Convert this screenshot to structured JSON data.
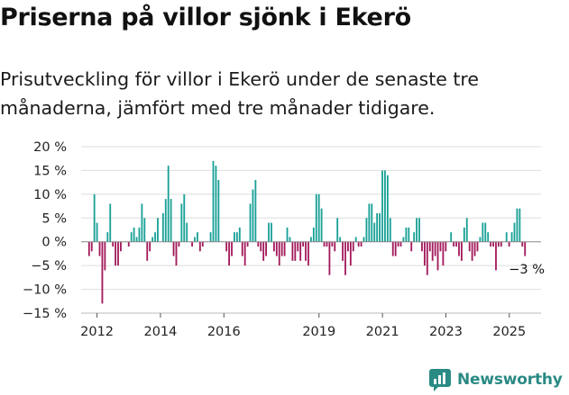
{
  "title": "Priserna på villor sjönk i Ekerö",
  "subtitle": "Prisutveckling för villor i Ekerö under de senaste tre månaderna, jämfört med tre månader tidigare.",
  "brand": {
    "name": "Newsworthy",
    "icon": "newsworthy-logo-icon",
    "color": "#2a8a84"
  },
  "colors": {
    "positive": "#18a097",
    "negative": "#a3195b",
    "grid": "#dddddd",
    "axis": "#888888"
  },
  "chart_data": {
    "type": "bar",
    "ylim": [
      -15,
      20
    ],
    "yticks": [
      20,
      15,
      10,
      5,
      0,
      -5,
      -10,
      -15
    ],
    "ytick_labels": [
      "20 %",
      "15 %",
      "10 %",
      "5 %",
      "0 %",
      "−5 %",
      "−10 %",
      "−15 %"
    ],
    "xticks": [
      2012,
      2014,
      2016,
      2019,
      2021,
      2023,
      2025
    ],
    "xtick_labels": [
      "2012",
      "2014",
      "2016",
      "2019",
      "2021",
      "2023",
      "2025"
    ],
    "last_value_label": "−3 %",
    "grid": true,
    "series": [
      {
        "start": 2011.75,
        "step": 0.0833,
        "values": [
          -3,
          -2,
          10,
          4,
          -3,
          -13,
          -6,
          2,
          8,
          -1,
          -5,
          -5,
          -2,
          0,
          0,
          -1,
          2,
          3,
          1,
          3,
          8,
          5,
          -4,
          -2,
          1,
          2,
          5,
          0,
          6,
          9,
          16,
          9,
          -3,
          -5,
          -1,
          8,
          10,
          4,
          0,
          -1,
          1,
          2,
          -2,
          -1,
          0,
          0,
          2,
          17,
          16,
          13,
          0,
          0,
          -2,
          -5,
          -3,
          2,
          2,
          3,
          -3,
          -5,
          -1,
          8,
          11,
          13,
          -1,
          -2,
          -4,
          -3,
          4,
          4,
          -2,
          -3,
          -5,
          -3,
          -3,
          3,
          1,
          -4,
          -4,
          -2,
          -4,
          -1,
          -4,
          -5,
          1,
          3,
          10,
          10,
          7,
          -1,
          -1,
          -7,
          -1,
          -2,
          5,
          1,
          -4,
          -7,
          -2,
          -5,
          -2,
          1,
          -1,
          -1,
          1,
          5,
          8,
          8,
          4,
          6,
          6,
          15,
          15,
          14,
          5,
          -3,
          -3,
          -1,
          -1,
          1,
          3,
          3,
          -2,
          2,
          5,
          5,
          -2,
          -5,
          -7,
          -2,
          -4,
          -3,
          -6,
          -2,
          -5,
          -2,
          0,
          2,
          -1,
          -1,
          -3,
          -4,
          3,
          5,
          -2,
          -4,
          -3,
          -2,
          1,
          4,
          4,
          2,
          -1,
          -1,
          -6,
          -1,
          -1,
          0,
          2,
          -1,
          2,
          4,
          7,
          7,
          -1,
          -3
        ]
      }
    ]
  }
}
